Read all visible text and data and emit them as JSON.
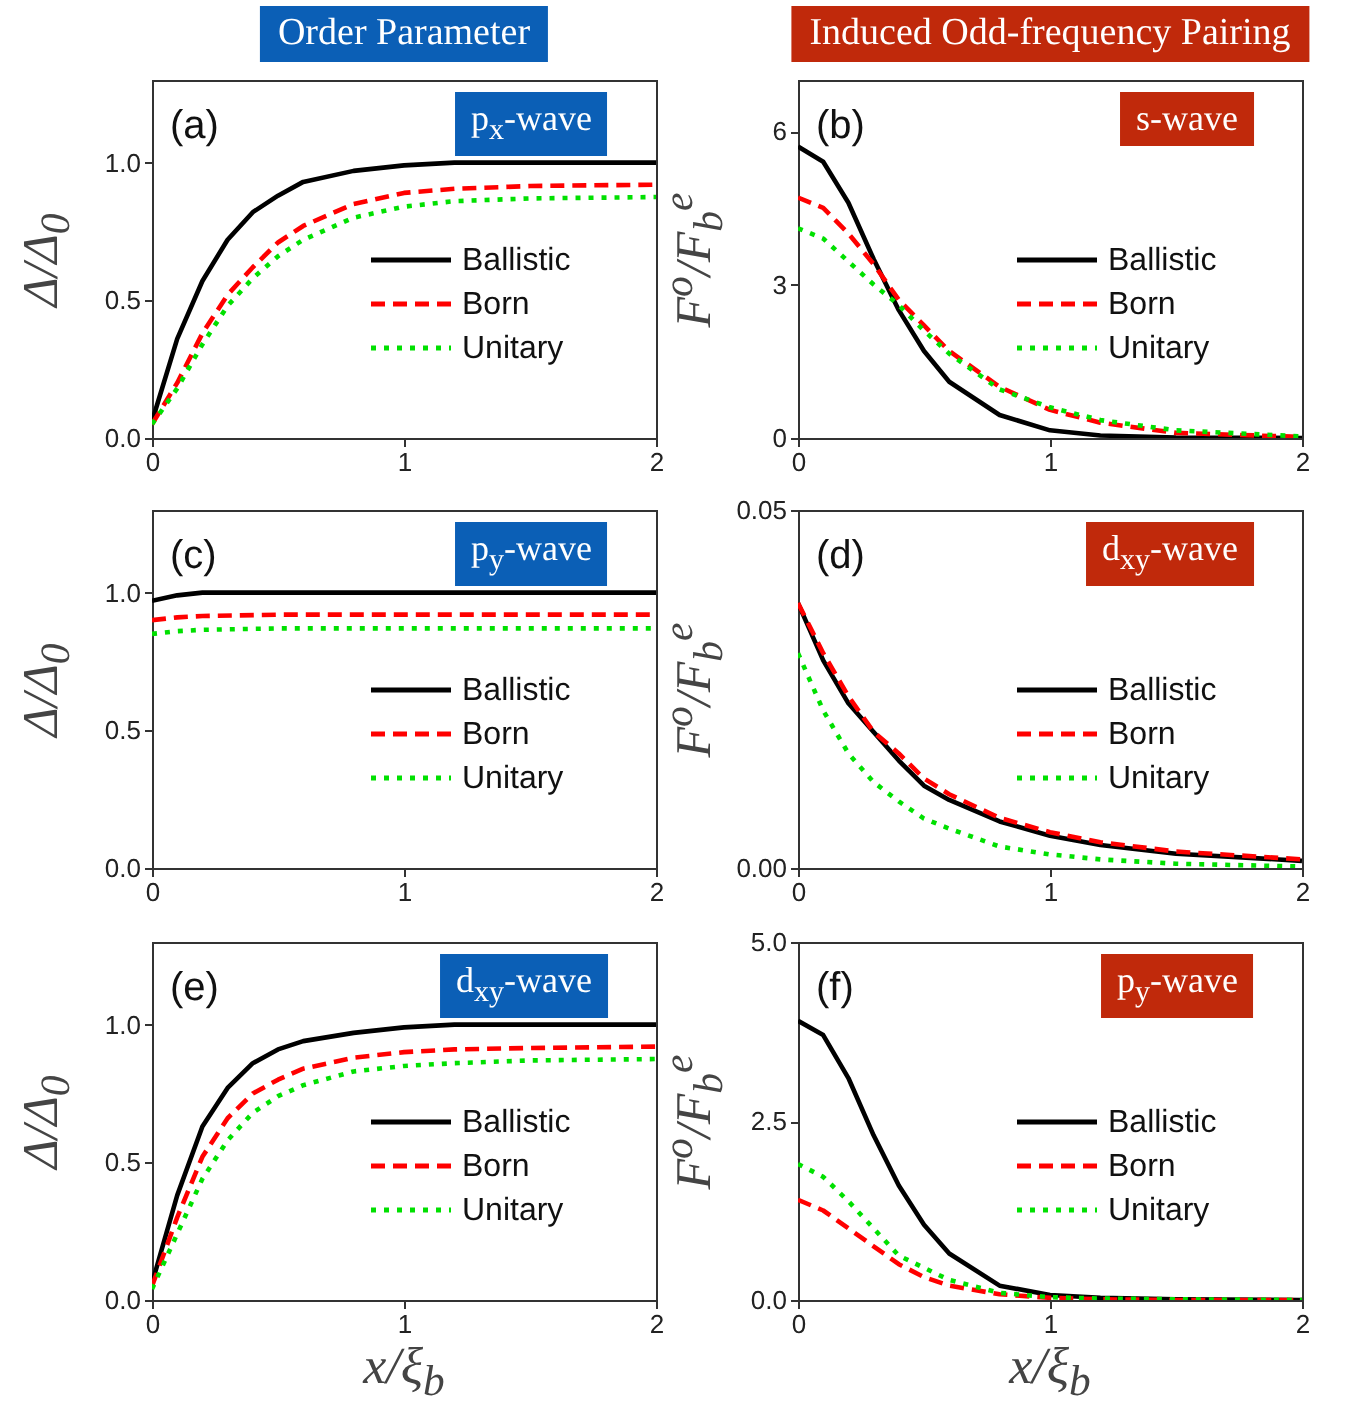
{
  "chart_data": [
    {
      "type": "line",
      "title": "Order Parameter",
      "ylabel": "Δ/Δ$_{0}$",
      "annotations": [
        "(a)",
        "p$_{x}$-wave"
      ],
      "x": [
        0,
        0.1,
        0.2,
        0.3,
        0.4,
        0.5,
        0.6,
        0.8,
        1,
        1.2,
        1.5,
        2
      ],
      "xlim": [
        0,
        2
      ],
      "xticks": [
        0,
        1,
        2
      ],
      "ylim": [
        0,
        1.3
      ],
      "yticks": [
        {
          "value": 0,
          "label": "0.0"
        },
        {
          "value": 0.5,
          "label": "0.5"
        },
        {
          "value": 1,
          "label": "1.0"
        }
      ],
      "legend": "right",
      "series": [
        {
          "name": "Ballistic",
          "color": "#000000",
          "line_style": "solid",
          "values": [
            0.06,
            0.36,
            0.57,
            0.72,
            0.82,
            0.88,
            0.93,
            0.97,
            0.99,
            1.0,
            1.0,
            1.0
          ]
        },
        {
          "name": "Born",
          "color": "#ff0000",
          "line_style": "dashed",
          "values": [
            0.05,
            0.2,
            0.38,
            0.52,
            0.62,
            0.71,
            0.77,
            0.85,
            0.89,
            0.905,
            0.915,
            0.92
          ]
        },
        {
          "name": "Unitary",
          "color": "#00e000",
          "line_style": "dotted",
          "values": [
            0.05,
            0.18,
            0.34,
            0.48,
            0.58,
            0.66,
            0.72,
            0.8,
            0.84,
            0.86,
            0.87,
            0.875
          ]
        }
      ]
    },
    {
      "type": "line",
      "title": "Induced Odd-frequency Pairing",
      "ylabel": "F$^{o}$/F$_{b}$$^{e}$",
      "annotations": [
        "(b)",
        "s-wave"
      ],
      "x": [
        0,
        0.1,
        0.2,
        0.3,
        0.4,
        0.5,
        0.6,
        0.8,
        1,
        1.2,
        1.5,
        2
      ],
      "xlim": [
        0,
        2
      ],
      "xticks": [
        0,
        1,
        2
      ],
      "ylim": [
        0,
        7
      ],
      "yticks": [
        0,
        3,
        6
      ],
      "legend": "right",
      "series": [
        {
          "name": "Ballistic",
          "color": "#000000",
          "line_style": "solid",
          "values": [
            5.7,
            5.4,
            4.6,
            3.5,
            2.5,
            1.7,
            1.1,
            0.45,
            0.15,
            0.05,
            0.01,
            0
          ]
        },
        {
          "name": "Born",
          "color": "#ff0000",
          "line_style": "dashed",
          "values": [
            4.7,
            4.5,
            4.0,
            3.4,
            2.7,
            2.2,
            1.7,
            1.0,
            0.55,
            0.3,
            0.1,
            0.02
          ]
        },
        {
          "name": "Unitary",
          "color": "#00e000",
          "line_style": "dotted",
          "values": [
            4.1,
            3.9,
            3.45,
            3.0,
            2.6,
            2.1,
            1.65,
            0.95,
            0.6,
            0.35,
            0.15,
            0.03
          ]
        }
      ]
    },
    {
      "type": "line",
      "ylabel": "Δ/Δ$_{0}$",
      "annotations": [
        "(c)",
        "p$_{y}$-wave"
      ],
      "x": [
        0,
        0.1,
        0.2,
        0.5,
        1,
        1.5,
        2
      ],
      "xlim": [
        0,
        2
      ],
      "xticks": [
        0,
        1,
        2
      ],
      "ylim": [
        0,
        1.3
      ],
      "yticks": [
        {
          "value": 0,
          "label": "0.0"
        },
        {
          "value": 0.5,
          "label": "0.5"
        },
        {
          "value": 1,
          "label": "1.0"
        }
      ],
      "legend": "right",
      "series": [
        {
          "name": "Ballistic",
          "color": "#000000",
          "line_style": "solid",
          "values": [
            0.97,
            0.99,
            1.0,
            1.0,
            1.0,
            1.0,
            1.0
          ]
        },
        {
          "name": "Born",
          "color": "#ff0000",
          "line_style": "dashed",
          "values": [
            0.9,
            0.91,
            0.915,
            0.92,
            0.92,
            0.92,
            0.92
          ]
        },
        {
          "name": "Unitary",
          "color": "#00e000",
          "line_style": "dotted",
          "values": [
            0.85,
            0.86,
            0.865,
            0.87,
            0.87,
            0.87,
            0.87
          ]
        }
      ]
    },
    {
      "type": "line",
      "ylabel": "F$^{o}$/F$_{b}$$^{e}$",
      "annotations": [
        "(d)",
        "d$_{xy}$-wave"
      ],
      "x": [
        0,
        0.1,
        0.2,
        0.3,
        0.4,
        0.5,
        0.6,
        0.8,
        1,
        1.2,
        1.5,
        2
      ],
      "xlim": [
        0,
        2
      ],
      "xticks": [
        0,
        1,
        2
      ],
      "ylim": [
        0,
        0.05
      ],
      "yticks": [
        {
          "value": 0,
          "label": "0.00"
        },
        {
          "value": 0.05,
          "label": "0.05"
        }
      ],
      "legend": "right",
      "series": [
        {
          "name": "Ballistic",
          "color": "#000000",
          "line_style": "solid",
          "values": [
            0.037,
            0.029,
            0.023,
            0.019,
            0.015,
            0.0115,
            0.0095,
            0.0065,
            0.0045,
            0.0032,
            0.002,
            0.001
          ]
        },
        {
          "name": "Born",
          "color": "#ff0000",
          "line_style": "dashed",
          "values": [
            0.037,
            0.03,
            0.024,
            0.019,
            0.016,
            0.0125,
            0.0103,
            0.007,
            0.005,
            0.0036,
            0.0023,
            0.0012
          ]
        },
        {
          "name": "Unitary",
          "color": "#00e000",
          "line_style": "dotted",
          "values": [
            0.03,
            0.022,
            0.016,
            0.012,
            0.0093,
            0.0069,
            0.0055,
            0.003,
            0.0019,
            0.0012,
            0.0006,
            0.0002
          ]
        }
      ]
    },
    {
      "type": "line",
      "xlabel": "x/ξ$_{b}$",
      "ylabel": "Δ/Δ$_{0}$",
      "annotations": [
        "(e)",
        "d$_{xy}$-wave"
      ],
      "x": [
        0,
        0.1,
        0.2,
        0.3,
        0.4,
        0.5,
        0.6,
        0.8,
        1,
        1.2,
        1.5,
        2
      ],
      "xlim": [
        0,
        2
      ],
      "xticks": [
        0,
        1,
        2
      ],
      "ylim": [
        0,
        1.3
      ],
      "yticks": [
        {
          "value": 0,
          "label": "0.0"
        },
        {
          "value": 0.5,
          "label": "0.5"
        },
        {
          "value": 1,
          "label": "1.0"
        }
      ],
      "legend": "right",
      "series": [
        {
          "name": "Ballistic",
          "color": "#000000",
          "line_style": "solid",
          "values": [
            0.06,
            0.38,
            0.63,
            0.77,
            0.86,
            0.91,
            0.94,
            0.97,
            0.99,
            1.0,
            1.0,
            1.0
          ]
        },
        {
          "name": "Born",
          "color": "#ff0000",
          "line_style": "dashed",
          "values": [
            0.05,
            0.3,
            0.52,
            0.66,
            0.75,
            0.8,
            0.84,
            0.88,
            0.9,
            0.91,
            0.915,
            0.92
          ]
        },
        {
          "name": "Unitary",
          "color": "#00e000",
          "line_style": "dotted",
          "values": [
            0.04,
            0.24,
            0.44,
            0.58,
            0.68,
            0.74,
            0.78,
            0.83,
            0.85,
            0.86,
            0.87,
            0.875
          ]
        }
      ]
    },
    {
      "type": "line",
      "xlabel": "x/ξ$_{b}$",
      "ylabel": "F$^{o}$/F$_{b}$$^{e}$",
      "annotations": [
        "(f)",
        "p$_{y}$-wave"
      ],
      "x": [
        0,
        0.1,
        0.2,
        0.3,
        0.4,
        0.5,
        0.6,
        0.8,
        1,
        1.2,
        1.5,
        2
      ],
      "xlim": [
        0,
        2
      ],
      "xticks": [
        0,
        1,
        2
      ],
      "ylim": [
        0,
        5
      ],
      "yticks": [
        {
          "value": 0,
          "label": "0.0"
        },
        {
          "value": 2.5,
          "label": "2.5"
        },
        {
          "value": 5,
          "label": "5.0"
        }
      ],
      "legend": "right",
      "series": [
        {
          "name": "Ballistic",
          "color": "#000000",
          "line_style": "solid",
          "values": [
            3.9,
            3.7,
            3.1,
            2.3,
            1.6,
            1.05,
            0.65,
            0.2,
            0.07,
            0.03,
            0.01,
            0
          ]
        },
        {
          "name": "Born",
          "color": "#ff0000",
          "line_style": "dashed",
          "values": [
            1.4,
            1.25,
            1.0,
            0.75,
            0.5,
            0.32,
            0.2,
            0.08,
            0.03,
            0.01,
            0,
            0
          ]
        },
        {
          "name": "Unitary",
          "color": "#00e000",
          "line_style": "dotted",
          "values": [
            1.9,
            1.72,
            1.38,
            1.0,
            0.62,
            0.45,
            0.28,
            0.1,
            0.04,
            0.02,
            0.01,
            0
          ]
        }
      ]
    }
  ]
}
